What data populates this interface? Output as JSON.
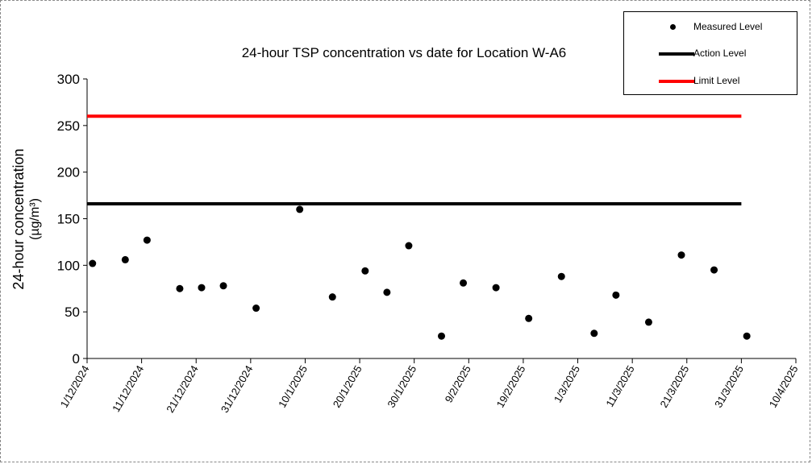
{
  "chart_data": {
    "type": "scatter",
    "title": "24-hour TSP concentration vs date for Location W-A6",
    "ylabel": "24-hour concentration",
    "ylabel_unit": "(µg/m³)",
    "xlabel": "",
    "ylim": [
      0,
      300
    ],
    "xlim": [
      "1/12/2024",
      "10/4/2025"
    ],
    "yticks": [
      0,
      50,
      100,
      150,
      200,
      250,
      300
    ],
    "xticks": [
      "1/12/2024",
      "11/12/2024",
      "21/12/2024",
      "31/12/2024",
      "10/1/2025",
      "20/1/2025",
      "30/1/2025",
      "9/2/2025",
      "19/2/2025",
      "1/3/2025",
      "11/3/2025",
      "21/3/2025",
      "31/3/2025",
      "10/4/2025"
    ],
    "grid": false,
    "legend_position": "top-right",
    "series": [
      {
        "name": "Measured Level",
        "kind": "markers",
        "color": "#000000",
        "points": [
          {
            "x": "2/12/2024",
            "y": 102
          },
          {
            "x": "8/12/2024",
            "y": 106
          },
          {
            "x": "12/12/2024",
            "y": 127
          },
          {
            "x": "18/12/2024",
            "y": 75
          },
          {
            "x": "22/12/2024",
            "y": 76
          },
          {
            "x": "26/12/2024",
            "y": 78
          },
          {
            "x": "1/1/2025",
            "y": 54
          },
          {
            "x": "9/1/2025",
            "y": 160
          },
          {
            "x": "15/1/2025",
            "y": 66
          },
          {
            "x": "21/1/2025",
            "y": 94
          },
          {
            "x": "25/1/2025",
            "y": 71
          },
          {
            "x": "29/1/2025",
            "y": 121
          },
          {
            "x": "4/2/2025",
            "y": 24
          },
          {
            "x": "8/2/2025",
            "y": 81
          },
          {
            "x": "14/2/2025",
            "y": 76
          },
          {
            "x": "20/2/2025",
            "y": 43
          },
          {
            "x": "26/2/2025",
            "y": 88
          },
          {
            "x": "4/3/2025",
            "y": 27
          },
          {
            "x": "8/3/2025",
            "y": 68
          },
          {
            "x": "14/3/2025",
            "y": 39
          },
          {
            "x": "20/3/2025",
            "y": 111
          },
          {
            "x": "26/3/2025",
            "y": 95
          },
          {
            "x": "1/4/2025",
            "y": 24
          }
        ]
      },
      {
        "name": "Action Level",
        "kind": "line",
        "color": "#000000",
        "from": "1/12/2024",
        "to": "31/3/2025",
        "y": 166
      },
      {
        "name": "Limit Level",
        "kind": "line",
        "color": "#ff0000",
        "from": "1/12/2024",
        "to": "31/3/2025",
        "y": 260
      }
    ]
  }
}
